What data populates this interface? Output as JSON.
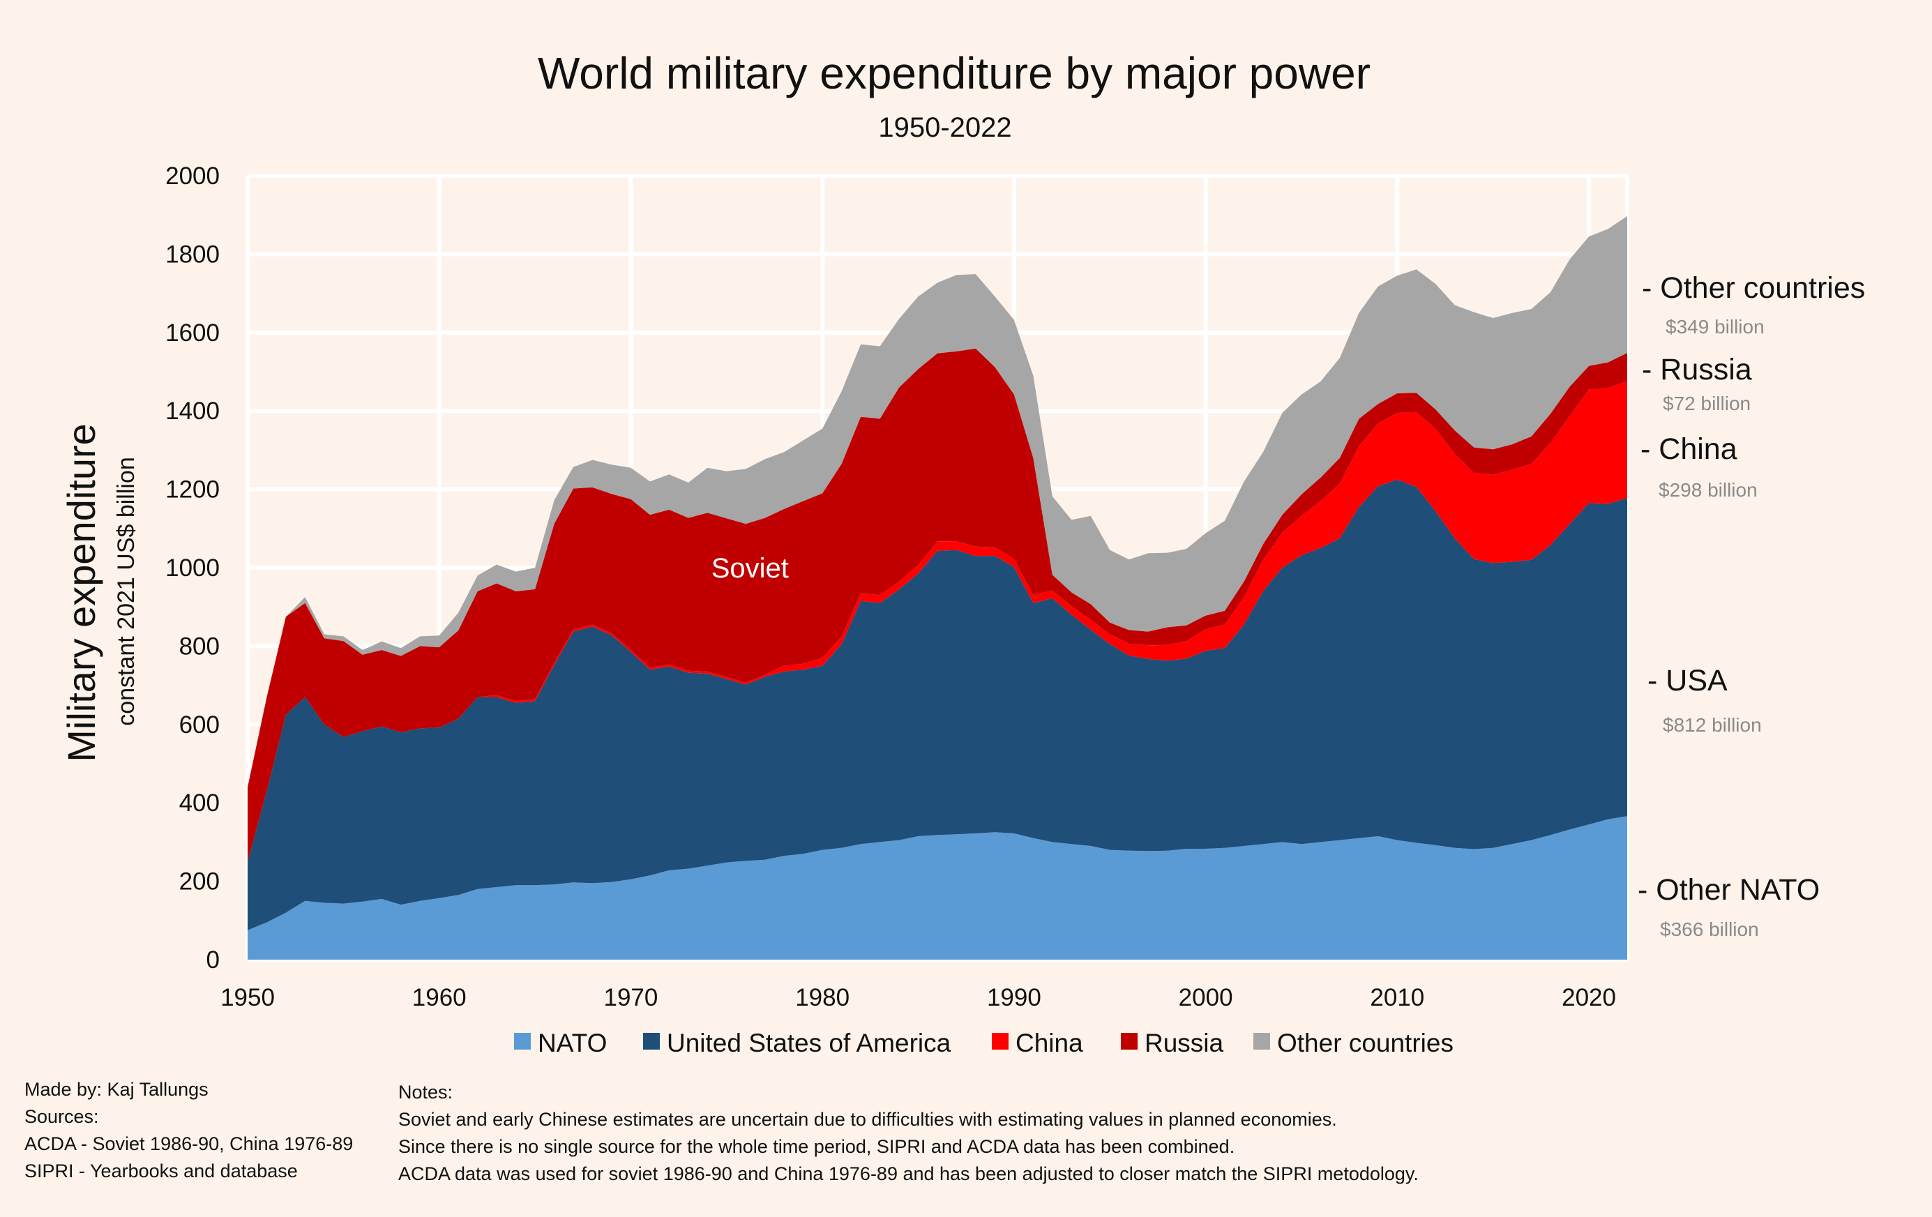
{
  "chart_data": {
    "type": "area",
    "stacked": true,
    "title": "World military expenditure by major power",
    "subtitle": "1950-2022",
    "ylabel": "Military expenditure",
    "ylabel_sub": "constant 2021 US$ billion",
    "xlabel": "",
    "xlim": [
      1950,
      2022
    ],
    "ylim": [
      0,
      2000
    ],
    "x_ticks": [
      1950,
      1960,
      1970,
      1980,
      1990,
      2000,
      2010,
      2020
    ],
    "y_ticks": [
      0,
      200,
      400,
      600,
      800,
      1000,
      1200,
      1400,
      1600,
      1800,
      2000
    ],
    "grid": "white vertical and horizontal gridlines",
    "legend_position": "bottom",
    "x": [
      1950,
      1951,
      1952,
      1953,
      1954,
      1955,
      1956,
      1957,
      1958,
      1959,
      1960,
      1961,
      1962,
      1963,
      1964,
      1965,
      1966,
      1967,
      1968,
      1969,
      1970,
      1971,
      1972,
      1973,
      1974,
      1975,
      1976,
      1977,
      1978,
      1979,
      1980,
      1981,
      1982,
      1983,
      1984,
      1985,
      1986,
      1987,
      1988,
      1989,
      1990,
      1991,
      1992,
      1993,
      1994,
      1995,
      1996,
      1997,
      1998,
      1999,
      2000,
      2001,
      2002,
      2003,
      2004,
      2005,
      2006,
      2007,
      2008,
      2009,
      2010,
      2011,
      2012,
      2013,
      2014,
      2015,
      2016,
      2017,
      2018,
      2019,
      2020,
      2021,
      2022
    ],
    "series": [
      {
        "name": "NATO",
        "color": "#5b9bd5",
        "values": [
          75,
          95,
          120,
          150,
          145,
          143,
          148,
          155,
          140,
          150,
          157,
          165,
          180,
          185,
          190,
          190,
          192,
          197,
          195,
          198,
          205,
          215,
          228,
          232,
          240,
          248,
          252,
          255,
          265,
          270,
          280,
          285,
          295,
          300,
          305,
          315,
          318,
          320,
          322,
          325,
          322,
          310,
          300,
          295,
          290,
          280,
          278,
          277,
          278,
          283,
          283,
          285,
          290,
          295,
          300,
          295,
          300,
          305,
          310,
          315,
          305,
          298,
          292,
          285,
          282,
          285,
          295,
          305,
          318,
          332,
          345,
          358,
          366
        ]
      },
      {
        "name": "United States of America",
        "color": "#1f4e79",
        "values": [
          175,
          335,
          505,
          520,
          455,
          425,
          435,
          440,
          440,
          440,
          435,
          450,
          490,
          485,
          465,
          470,
          560,
          640,
          655,
          630,
          580,
          525,
          520,
          500,
          490,
          468,
          450,
          467,
          470,
          470,
          470,
          520,
          620,
          610,
          640,
          670,
          725,
          725,
          708,
          705,
          680,
          600,
          622,
          585,
          552,
          525,
          498,
          490,
          485,
          485,
          505,
          510,
          565,
          645,
          700,
          737,
          750,
          770,
          845,
          893,
          920,
          908,
          852,
          790,
          740,
          727,
          720,
          715,
          740,
          780,
          820,
          805,
          812
        ]
      },
      {
        "name": "China",
        "color": "#ff0000",
        "values": [
          0,
          0,
          0,
          0,
          0,
          0,
          0,
          0,
          0,
          0,
          0,
          0,
          0,
          5,
          5,
          5,
          5,
          5,
          5,
          5,
          5,
          5,
          5,
          5,
          5,
          5,
          5,
          5,
          15,
          15,
          20,
          20,
          20,
          20,
          20,
          22,
          24,
          22,
          24,
          22,
          20,
          20,
          20,
          22,
          25,
          25,
          30,
          35,
          40,
          45,
          55,
          60,
          70,
          80,
          90,
          100,
          120,
          140,
          155,
          160,
          170,
          190,
          210,
          215,
          220,
          225,
          235,
          245,
          260,
          275,
          290,
          295,
          298
        ]
      },
      {
        "name": "Russia",
        "color": "#c00000",
        "values": [
          190,
          240,
          250,
          240,
          220,
          245,
          195,
          195,
          195,
          210,
          205,
          225,
          270,
          285,
          280,
          280,
          355,
          360,
          350,
          355,
          385,
          390,
          395,
          390,
          405,
          405,
          405,
          400,
          400,
          415,
          420,
          440,
          450,
          450,
          495,
          500,
          480,
          485,
          505,
          460,
          420,
          350,
          40,
          35,
          40,
          30,
          35,
          35,
          45,
          40,
          35,
          35,
          40,
          40,
          45,
          55,
          60,
          65,
          70,
          50,
          50,
          50,
          50,
          60,
          65,
          65,
          65,
          70,
          75,
          75,
          60,
          66,
          72
        ]
      },
      {
        "name": "Other countries",
        "color": "#a6a6a6",
        "values": [
          0,
          0,
          0,
          15,
          10,
          12,
          12,
          22,
          20,
          25,
          30,
          45,
          40,
          48,
          50,
          55,
          60,
          55,
          70,
          75,
          80,
          85,
          90,
          90,
          115,
          120,
          140,
          150,
          145,
          155,
          165,
          185,
          185,
          185,
          175,
          185,
          180,
          195,
          190,
          180,
          190,
          210,
          200,
          185,
          225,
          185,
          180,
          200,
          190,
          195,
          210,
          230,
          255,
          235,
          260,
          255,
          245,
          255,
          270,
          300,
          300,
          315,
          320,
          320,
          345,
          335,
          335,
          325,
          310,
          325,
          330,
          340,
          349
        ]
      }
    ],
    "end_labels": [
      {
        "label": "- Other countries",
        "value": "$349 billion"
      },
      {
        "label": "- Russia",
        "value": "$72 billion"
      },
      {
        "label": "- China",
        "value": "$298 billion"
      },
      {
        "label": "- USA",
        "value": "$812 billion"
      },
      {
        "label": "- Other NATO",
        "value": "$366 billion"
      }
    ],
    "annotations": [
      {
        "text": "Soviet",
        "x": 1976,
        "y": 1000
      }
    ]
  },
  "footer": {
    "credit": "Made by: Kaj Tallungs",
    "sources_heading": "Sources:",
    "sources": [
      "ACDA - Soviet 1986-90, China 1976-89",
      "SIPRI - Yearbooks and database"
    ],
    "notes_heading": "Notes:",
    "notes": [
      "Soviet and early Chinese estimates are uncertain due to difficulties with estimating values in planned economies.",
      "Since there is no single source for the whole time period, SIPRI and ACDA data has been combined.",
      "ACDA data was used for soviet 1986-90 and China 1976-89 and has been adjusted to closer match the SIPRI metodology."
    ]
  }
}
